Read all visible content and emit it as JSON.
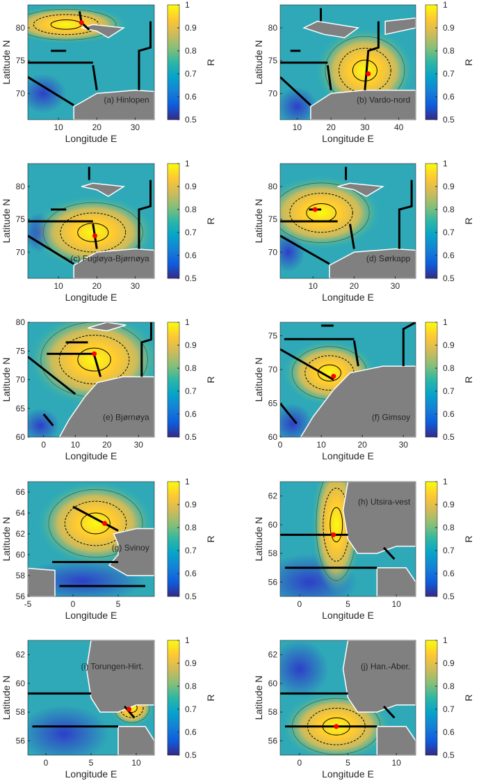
{
  "colorbar": {
    "label": "R",
    "range": [
      0.5,
      1
    ],
    "ticks": [
      "0.5",
      "0.6",
      "0.7",
      "0.8",
      "0.9",
      "1"
    ],
    "colormap": "parula"
  },
  "axis_labels": {
    "x": "Longitude E",
    "y": "Latitude N"
  },
  "colors": {
    "land": "#808080",
    "coast": "#ffffff",
    "section": "#000000",
    "station": "#ff0000"
  },
  "panels": [
    {
      "label": "(a) Hinlopen",
      "xlim": [
        2,
        35
      ],
      "ylim": [
        66,
        83.5
      ],
      "xticks": [
        "10",
        "20",
        "30"
      ],
      "yticks": [
        "70",
        "75",
        "80"
      ],
      "station": [
        16,
        80.8
      ]
    },
    {
      "label": "(b) Vardo-nord",
      "xlim": [
        5,
        45
      ],
      "ylim": [
        66,
        83.5
      ],
      "xticks": [
        "10",
        "20",
        "30",
        "40"
      ],
      "yticks": [
        "70",
        "75",
        "80"
      ],
      "station": [
        31,
        73
      ]
    },
    {
      "label": "(c) Fugløya-Bjørnøya",
      "xlim": [
        2,
        35
      ],
      "ylim": [
        66,
        83.5
      ],
      "xticks": [
        "10",
        "20",
        "30"
      ],
      "yticks": [
        "70",
        "75",
        "80"
      ],
      "station": [
        19.5,
        72.5
      ]
    },
    {
      "label": "(d) Sørkapp",
      "xlim": [
        2,
        35
      ],
      "ylim": [
        66,
        83.5
      ],
      "xticks": [
        "10",
        "20",
        "30"
      ],
      "yticks": [
        "70",
        "75",
        "80"
      ],
      "station": [
        10.5,
        76.5
      ]
    },
    {
      "label": "(e) Bjørnøya",
      "xlim": [
        -5,
        35
      ],
      "ylim": [
        60,
        80
      ],
      "xticks": [
        "0",
        "10",
        "20",
        "30"
      ],
      "yticks": [
        "60",
        "65",
        "70",
        "75",
        "80"
      ],
      "station": [
        16,
        74.5
      ]
    },
    {
      "label": "(f) Gimsoy",
      "xlim": [
        0,
        33
      ],
      "ylim": [
        60,
        77
      ],
      "xticks": [
        "0",
        "10",
        "20",
        "30"
      ],
      "yticks": [
        "60",
        "65",
        "70",
        "75"
      ],
      "station": [
        13,
        69
      ]
    },
    {
      "label": "(g) Svinoy",
      "xlim": [
        -5,
        9
      ],
      "ylim": [
        56,
        67
      ],
      "xticks": [
        "-5",
        "0",
        "5"
      ],
      "yticks": [
        "56",
        "58",
        "60",
        "62",
        "64",
        "66"
      ],
      "station": [
        3.5,
        63
      ]
    },
    {
      "label": "(h) Utsira-vest",
      "xlim": [
        -2,
        12
      ],
      "ylim": [
        55,
        63
      ],
      "xticks": [
        "0",
        "5",
        "10"
      ],
      "yticks": [
        "56",
        "58",
        "60",
        "62"
      ],
      "station": [
        3.5,
        59.3
      ]
    },
    {
      "label": "(i) Torungen-Hirt.",
      "xlim": [
        -2,
        12
      ],
      "ylim": [
        55,
        63
      ],
      "xticks": [
        "0",
        "5",
        "10"
      ],
      "yticks": [
        "56",
        "58",
        "60",
        "62"
      ],
      "station": [
        9.2,
        58.2
      ]
    },
    {
      "label": "(j) Han.-Aber.",
      "xlim": [
        -2,
        12
      ],
      "ylim": [
        55,
        63
      ],
      "xticks": [
        "0",
        "5",
        "10"
      ],
      "yticks": [
        "56",
        "58",
        "60",
        "62"
      ],
      "station": [
        3.8,
        57
      ]
    }
  ]
}
